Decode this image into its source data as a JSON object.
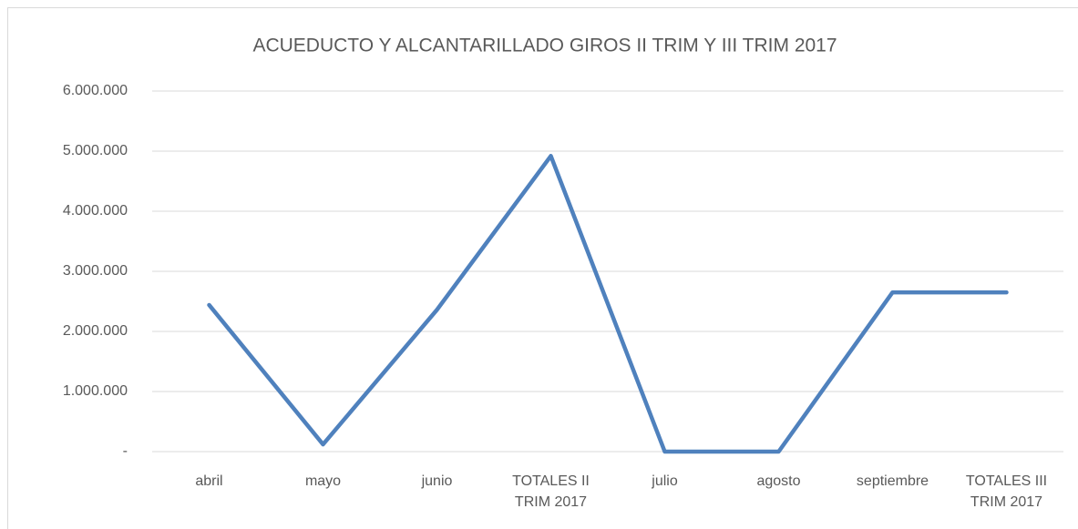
{
  "chart_data": {
    "type": "line",
    "title": "ACUEDUCTO Y ALCANTARILLADO GIROS II TRIM Y III TRIM 2017",
    "categories": [
      "abril",
      "mayo",
      "junio",
      "TOTALES II TRIM 2017",
      "julio",
      "agosto",
      "septiembre",
      "TOTALES III TRIM 2017"
    ],
    "series": [
      {
        "name": "ACUEDUCTO Y ALCANTARILLADO",
        "color": "#4f81bd",
        "values": [
          2440000,
          120000,
          2360000,
          4920000,
          0,
          0,
          2650000,
          2650000
        ]
      }
    ],
    "ylim": [
      0,
      6000000
    ],
    "yticks": [
      {
        "value": 0,
        "label": "-"
      },
      {
        "value": 1000000,
        "label": "1.000.000"
      },
      {
        "value": 2000000,
        "label": "2.000.000"
      },
      {
        "value": 3000000,
        "label": "3.000.000"
      },
      {
        "value": 4000000,
        "label": "4.000.000"
      },
      {
        "value": 5000000,
        "label": "5.000.000"
      },
      {
        "value": 6000000,
        "label": "6.000.000"
      }
    ],
    "grid": true
  }
}
